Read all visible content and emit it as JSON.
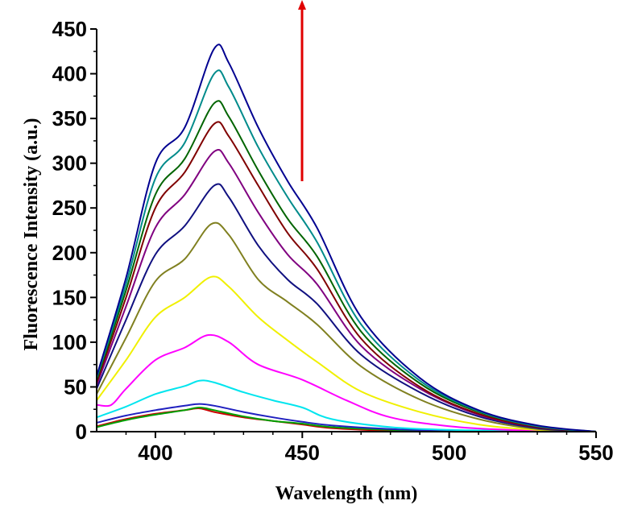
{
  "chart_data": {
    "type": "line",
    "title": "",
    "xlabel": "Wavelength (nm)",
    "ylabel": "Fluorescence Intensity (a.u.)",
    "xlim": [
      380,
      550
    ],
    "ylim": [
      0,
      450
    ],
    "xticks": [
      400,
      450,
      500,
      550
    ],
    "yticks": [
      0,
      50,
      100,
      150,
      200,
      250,
      300,
      350,
      400,
      450
    ],
    "grid": false,
    "legend": "none",
    "annotation": "red upward arrow near 450 nm indicating increasing intensity",
    "series": [
      {
        "color": "#cc0000",
        "x": [
          380,
          390,
          400,
          410,
          415,
          420,
          430,
          440,
          450,
          460,
          480,
          500,
          520,
          550
        ],
        "y": [
          6,
          14,
          20,
          24,
          26,
          22,
          16,
          12,
          8,
          4,
          1,
          0,
          0,
          0
        ]
      },
      {
        "color": "#00a000",
        "x": [
          380,
          390,
          400,
          410,
          415,
          420,
          430,
          440,
          450,
          460,
          480,
          500,
          520,
          550
        ],
        "y": [
          5,
          13,
          19,
          24,
          27,
          24,
          17,
          12,
          9,
          5,
          2,
          0,
          0,
          0
        ]
      },
      {
        "color": "#2020c0",
        "x": [
          380,
          390,
          400,
          410,
          415,
          420,
          430,
          440,
          450,
          460,
          480,
          500,
          520,
          550
        ],
        "y": [
          10,
          18,
          24,
          29,
          31,
          29,
          22,
          16,
          11,
          7,
          3,
          1,
          0,
          0
        ]
      },
      {
        "color": "#00e5ee",
        "x": [
          380,
          390,
          400,
          410,
          415,
          420,
          430,
          440,
          450,
          460,
          480,
          500,
          520,
          550
        ],
        "y": [
          16,
          28,
          42,
          51,
          57,
          55,
          44,
          35,
          27,
          14,
          5,
          2,
          1,
          0
        ]
      },
      {
        "color": "#ff00ff",
        "x": [
          380,
          385,
          390,
          400,
          410,
          418,
          425,
          435,
          450,
          465,
          480,
          500,
          520,
          550
        ],
        "y": [
          30,
          30,
          48,
          80,
          94,
          108,
          100,
          75,
          58,
          35,
          16,
          6,
          2,
          0
        ]
      },
      {
        "color": "#f0f000",
        "x": [
          380,
          390,
          400,
          410,
          419,
          425,
          435,
          445,
          455,
          470,
          490,
          510,
          530,
          550
        ],
        "y": [
          35,
          80,
          128,
          150,
          173,
          162,
          128,
          102,
          78,
          45,
          22,
          8,
          2,
          0
        ]
      },
      {
        "color": "#808020",
        "x": [
          380,
          390,
          400,
          410,
          419,
          425,
          435,
          445,
          455,
          470,
          490,
          510,
          530,
          550
        ],
        "y": [
          42,
          105,
          168,
          193,
          232,
          220,
          170,
          145,
          120,
          73,
          36,
          14,
          3,
          0
        ]
      },
      {
        "color": "#101080",
        "x": [
          380,
          390,
          400,
          410,
          420,
          425,
          435,
          445,
          455,
          470,
          490,
          510,
          530,
          550
        ],
        "y": [
          48,
          125,
          198,
          230,
          275,
          262,
          208,
          170,
          143,
          86,
          44,
          17,
          4,
          0
        ]
      },
      {
        "color": "#800080",
        "x": [
          380,
          390,
          400,
          410,
          420,
          425,
          435,
          445,
          455,
          470,
          490,
          510,
          530,
          550
        ],
        "y": [
          52,
          140,
          228,
          265,
          313,
          300,
          245,
          198,
          165,
          96,
          48,
          19,
          5,
          0
        ]
      },
      {
        "color": "#800000",
        "x": [
          380,
          390,
          400,
          410,
          420,
          425,
          435,
          445,
          455,
          470,
          490,
          510,
          530,
          550
        ],
        "y": [
          55,
          150,
          250,
          290,
          344,
          330,
          275,
          222,
          182,
          104,
          50,
          20,
          5,
          0
        ]
      },
      {
        "color": "#006400",
        "x": [
          380,
          390,
          400,
          410,
          420,
          425,
          435,
          445,
          455,
          470,
          490,
          510,
          530,
          550
        ],
        "y": [
          58,
          158,
          265,
          305,
          367,
          352,
          292,
          238,
          196,
          112,
          54,
          22,
          6,
          0
        ]
      },
      {
        "color": "#008b8b",
        "x": [
          380,
          390,
          400,
          410,
          420,
          425,
          435,
          445,
          455,
          470,
          490,
          510,
          530,
          550
        ],
        "y": [
          60,
          165,
          283,
          323,
          400,
          385,
          318,
          262,
          212,
          120,
          57,
          23,
          6,
          0
        ]
      },
      {
        "color": "#000090",
        "x": [
          380,
          390,
          400,
          410,
          420,
          425,
          435,
          445,
          455,
          470,
          490,
          510,
          530,
          550
        ],
        "y": [
          62,
          172,
          300,
          340,
          428,
          412,
          340,
          280,
          228,
          128,
          60,
          24,
          7,
          0
        ]
      }
    ]
  }
}
